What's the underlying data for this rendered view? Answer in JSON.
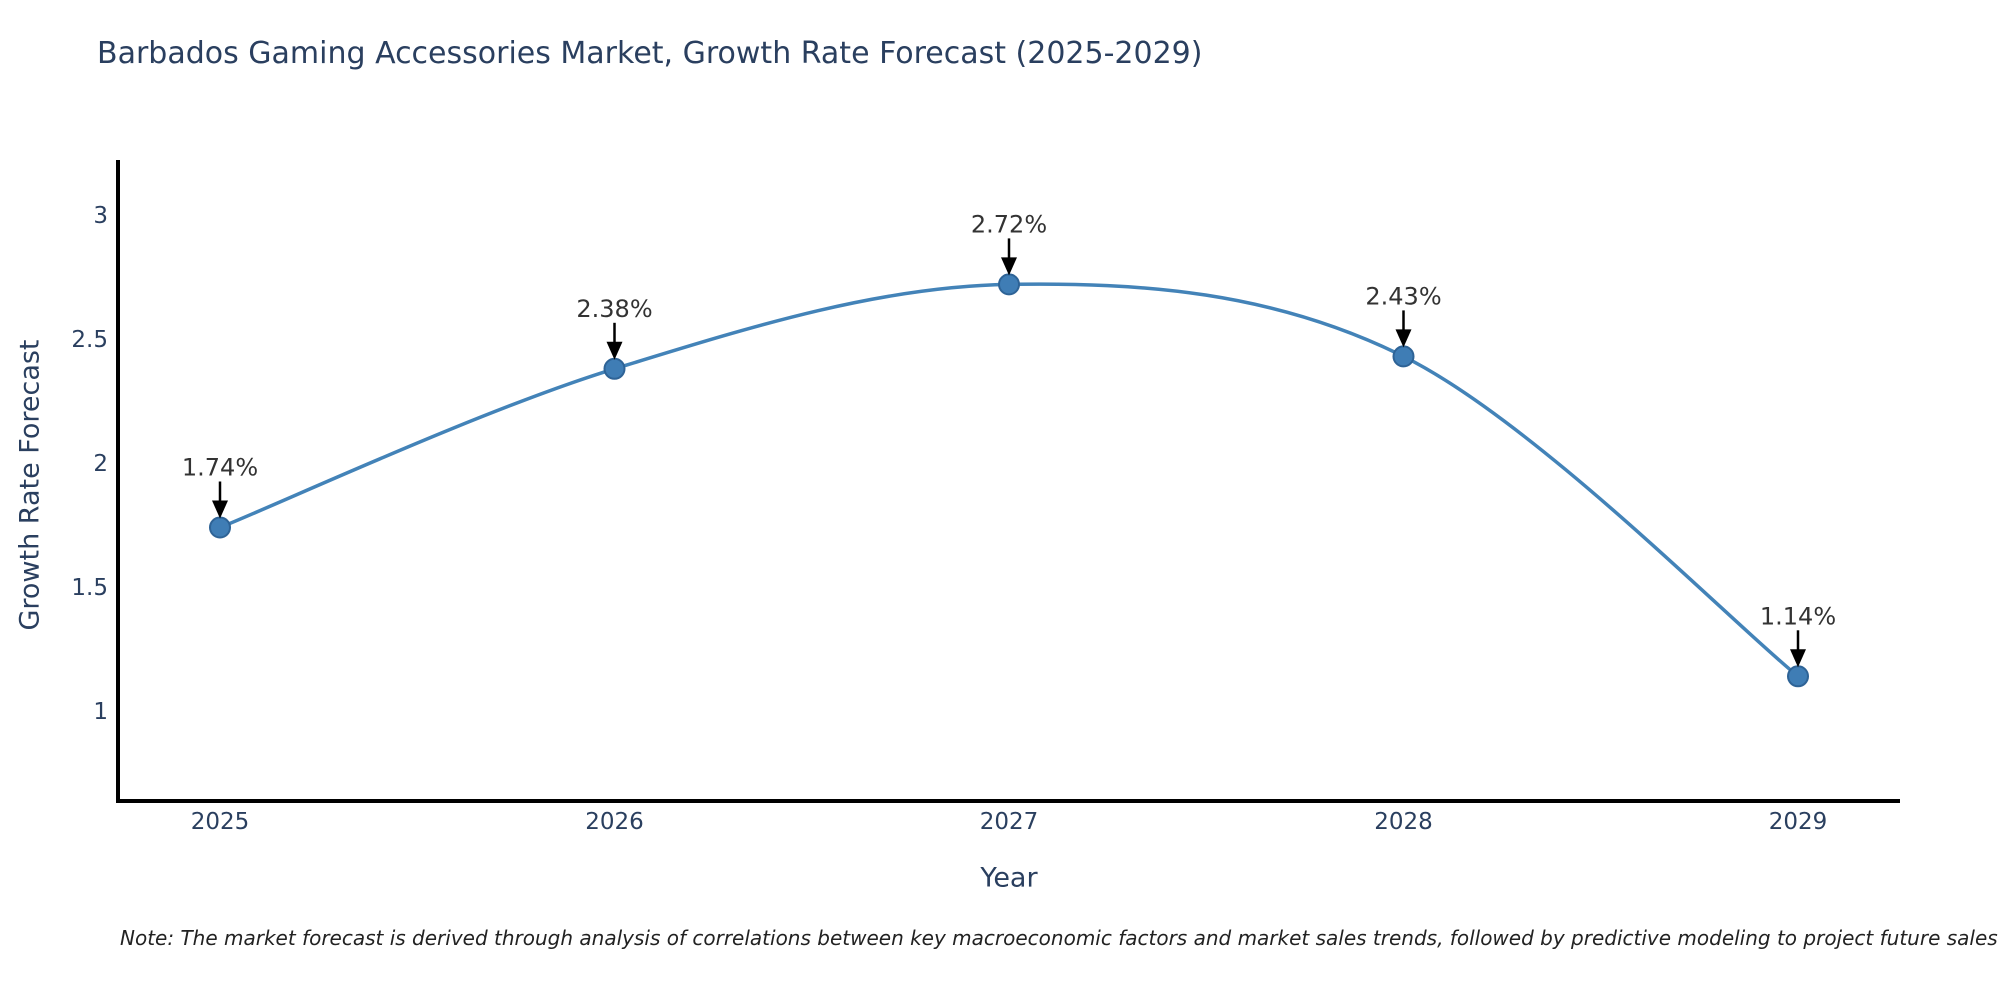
{
  "title": "Barbados Gaming Accessories Market, Growth Rate Forecast (2025-2029)",
  "note": "Note: The market forecast is derived through analysis of correlations between key macroeconomic factors and market sales trends, followed by predictive modeling to project future sales",
  "chart_data": {
    "type": "line",
    "title": "Barbados Gaming Accessories Market, Growth Rate Forecast (2025-2029)",
    "xlabel": "Year",
    "ylabel": "Growth Rate Forecast",
    "categories": [
      "2025",
      "2026",
      "2027",
      "2028",
      "2029"
    ],
    "values": [
      1.74,
      2.38,
      2.72,
      2.43,
      1.14
    ],
    "point_labels": [
      "1.74%",
      "2.38%",
      "2.72%",
      "2.43%",
      "1.14%"
    ],
    "yticks": [
      1,
      1.5,
      2,
      2.5,
      3
    ],
    "ylim": [
      0.64,
      3.22
    ],
    "xlim": [
      2024.74,
      2029.26
    ],
    "grid": false,
    "legend": "none",
    "line_shape": "spline",
    "marker": "circle",
    "annotation_arrows": true,
    "colors": {
      "line": "#4383b8",
      "marker": "#3f7db5",
      "marker_border": "#2e6396",
      "axis": "#000000",
      "arrow": "#000000",
      "text": "#2a3f5f",
      "annotation": "#333333",
      "note_text": "#222222",
      "background": "#ffffff"
    }
  }
}
